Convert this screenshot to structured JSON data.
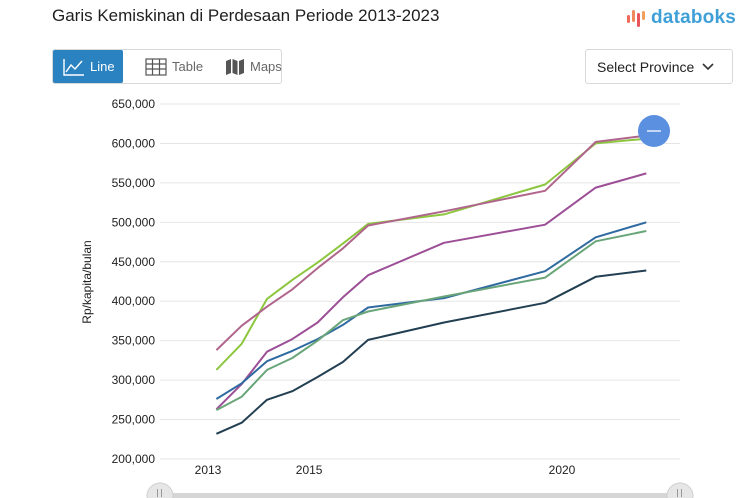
{
  "title": "Garis Kemiskinan di Perdesaan Periode 2013-2023",
  "logo": {
    "text": "databoks",
    "icon": "databoks-logo-icon"
  },
  "tabs": [
    {
      "label": "Line",
      "icon": "line-chart-icon",
      "active": true
    },
    {
      "label": "Table",
      "icon": "table-icon",
      "active": false
    },
    {
      "label": "Maps",
      "icon": "map-icon",
      "active": false
    }
  ],
  "province_select": {
    "label": "Select Province",
    "icon": "chevron-down-icon"
  },
  "colors": {
    "accent": "#2a82c0",
    "zoom_button": "#5b8fe0"
  },
  "chart_data": {
    "type": "line",
    "ylabel": "Rp/kapita/bulan",
    "xlabel": "",
    "ylim": [
      200000,
      650000
    ],
    "yticks": [
      "650,000",
      "600,000",
      "550,000",
      "500,000",
      "450,000",
      "400,000",
      "350,000",
      "300,000",
      "250,000",
      "200,000"
    ],
    "xticks": [
      "2013",
      "2015",
      "2020"
    ],
    "x": [
      "2013-03",
      "2013-09",
      "2014-03",
      "2014-09",
      "2015-03",
      "2015-09",
      "2016-03",
      "2017-09",
      "2019-09",
      "2020-09",
      "2021-09",
      "2023-03"
    ],
    "grid": true,
    "series": [
      {
        "color": "#8dc63f",
        "values": [
          313000,
          346000,
          403000,
          427000,
          449000,
          473000,
          498000,
          510000,
          548000,
          600000,
          606000,
          null
        ]
      },
      {
        "color": "#b0658c",
        "values": [
          338000,
          369000,
          393000,
          415000,
          442000,
          467000,
          496000,
          514000,
          540000,
          602000,
          610000,
          null
        ]
      },
      {
        "color": "#9c4f96",
        "values": [
          263000,
          295000,
          336000,
          352000,
          373000,
          405000,
          433000,
          474000,
          497000,
          544000,
          562000,
          null
        ]
      },
      {
        "color": "#2f6aa0",
        "values": [
          276000,
          296000,
          324000,
          337000,
          352000,
          370000,
          392000,
          404000,
          438000,
          481000,
          500000,
          null
        ]
      },
      {
        "color": "#6aa57a",
        "values": [
          262000,
          279000,
          313000,
          328000,
          350000,
          376000,
          387000,
          406000,
          430000,
          476000,
          489000,
          null
        ]
      },
      {
        "color": "#233f52",
        "values": [
          232000,
          246000,
          275000,
          286000,
          304000,
          323000,
          351000,
          373000,
          398000,
          431000,
          439000,
          null
        ]
      }
    ]
  }
}
